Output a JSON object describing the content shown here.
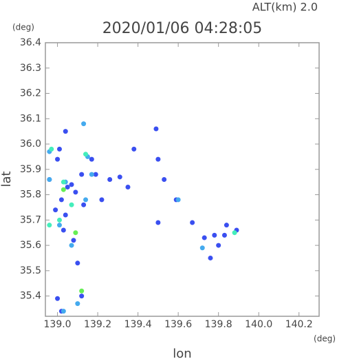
{
  "chart_data": {
    "type": "scatter",
    "title": "2020/01/06 04:28:05",
    "annotation": "ALT(km)  2.0",
    "y_unit": "(deg)",
    "x_unit": "(deg)",
    "xlabel": "lon",
    "ylabel": "lat",
    "xlim": [
      138.94,
      140.3
    ],
    "ylim": [
      35.32,
      36.4
    ],
    "xticks": [
      {
        "value": 139,
        "label": "139.0"
      },
      139.2,
      139.4,
      139.6,
      139.8,
      {
        "value": 140,
        "label": "140.0"
      },
      140.2
    ],
    "yticks": [
      35.4,
      35.5,
      35.6,
      35.7,
      35.8,
      35.9,
      {
        "value": 36,
        "label": "36.0"
      },
      36.1,
      36.2,
      36.3,
      36.4
    ],
    "series": [
      {
        "color": "#3a4ff0",
        "x": [
          139.04,
          139.01,
          139.0,
          138.96,
          139.05,
          139.07,
          139.09,
          139.02,
          138.99,
          139.04,
          139.03,
          139.08,
          139.1,
          139.12,
          139.0,
          139.02,
          139.17,
          139.26,
          139.31,
          139.35,
          139.38,
          139.5,
          139.49,
          139.53,
          139.5,
          139.67,
          139.73,
          139.76,
          139.8,
          139.84,
          139.89,
          139.83,
          139.78,
          139.22,
          139.13,
          139.12,
          139.19,
          139.59
        ],
        "y": [
          36.05,
          35.98,
          35.94,
          35.86,
          35.83,
          35.84,
          35.81,
          35.78,
          35.74,
          35.72,
          35.66,
          35.62,
          35.53,
          35.4,
          35.39,
          35.34,
          35.94,
          35.86,
          35.87,
          35.83,
          35.98,
          35.94,
          36.06,
          35.86,
          35.69,
          35.69,
          35.63,
          35.55,
          35.6,
          35.68,
          35.66,
          35.64,
          35.64,
          35.78,
          35.76,
          35.88,
          35.88,
          35.78
        ]
      },
      {
        "color": "#44aaee",
        "x": [
          139.13,
          138.96,
          138.96,
          139.04,
          139.01,
          139.07,
          139.1,
          139.03,
          139.15,
          139.72,
          139.6,
          139.14,
          139.17
        ],
        "y": [
          36.08,
          35.97,
          35.86,
          35.85,
          35.68,
          35.6,
          35.37,
          35.34,
          35.95,
          35.59,
          35.78,
          35.78,
          35.88
        ]
      },
      {
        "color": "#44eebb",
        "x": [
          138.97,
          138.96,
          139.01,
          139.03,
          139.88,
          139.14,
          139.07
        ],
        "y": [
          35.98,
          35.68,
          35.7,
          35.85,
          35.65,
          35.96,
          35.76
        ]
      },
      {
        "color": "#66ee55",
        "x": [
          139.12,
          139.09,
          139.03
        ],
        "y": [
          35.42,
          35.65,
          35.82
        ]
      }
    ]
  }
}
